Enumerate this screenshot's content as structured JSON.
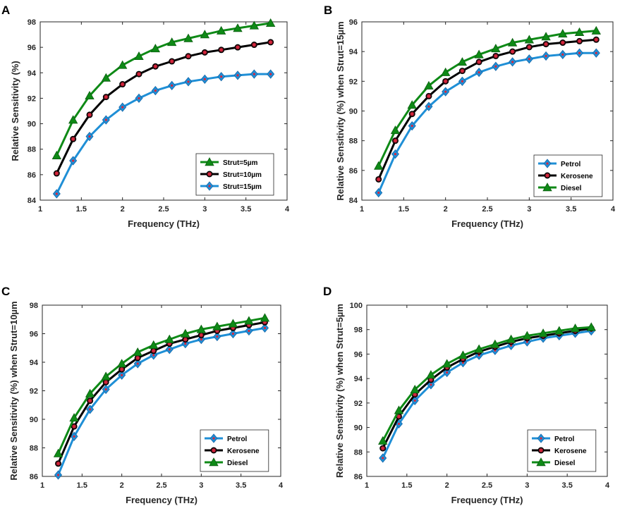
{
  "figure": {
    "panels": [
      "A",
      "B",
      "C",
      "D"
    ]
  },
  "chart_data": [
    {
      "panel": "A",
      "type": "line",
      "title": "",
      "xlabel": "Frequency (THz)",
      "ylabel": "Relative Sensitivity (%)",
      "xlim": [
        1,
        4
      ],
      "ylim": [
        84,
        98
      ],
      "xticks": [
        "1",
        "1.5",
        "2",
        "2.5",
        "3",
        "3.5",
        "4"
      ],
      "yticks": [
        "84",
        "86",
        "88",
        "90",
        "92",
        "94",
        "96",
        "98"
      ],
      "legend_position": "bottom-right",
      "x": [
        1.2,
        1.4,
        1.6,
        1.8,
        2.0,
        2.2,
        2.4,
        2.6,
        2.8,
        3.0,
        3.2,
        3.4,
        3.6,
        3.8
      ],
      "series": [
        {
          "name": "Strut=5µm",
          "color": "#0e8a16",
          "marker": "triangle",
          "values": [
            87.5,
            90.3,
            92.2,
            93.6,
            94.6,
            95.3,
            95.9,
            96.4,
            96.7,
            97.0,
            97.3,
            97.5,
            97.7,
            97.9
          ]
        },
        {
          "name": "Strut=10µm",
          "color": "#000000",
          "marker": "star",
          "values": [
            86.1,
            88.8,
            90.7,
            92.1,
            93.1,
            93.9,
            94.5,
            94.9,
            95.3,
            95.6,
            95.8,
            96.0,
            96.2,
            96.4
          ]
        },
        {
          "name": "Strut=15µm",
          "color": "#1f8fd6",
          "marker": "diamond",
          "values": [
            84.5,
            87.1,
            89.0,
            90.3,
            91.3,
            92.0,
            92.6,
            93.0,
            93.3,
            93.5,
            93.7,
            93.8,
            93.9,
            93.9
          ]
        }
      ]
    },
    {
      "panel": "B",
      "type": "line",
      "title": "",
      "xlabel": "Frequency (THz)",
      "ylabel": "Relative Sensitivity (%) when Strut=15µm",
      "xlim": [
        1,
        4
      ],
      "ylim": [
        84,
        96
      ],
      "xticks": [
        "1",
        "1.5",
        "2",
        "2.5",
        "3",
        "3.5",
        "4"
      ],
      "yticks": [
        "84",
        "86",
        "88",
        "90",
        "92",
        "94",
        "96"
      ],
      "legend_position": "bottom-right",
      "x": [
        1.2,
        1.4,
        1.6,
        1.8,
        2.0,
        2.2,
        2.4,
        2.6,
        2.8,
        3.0,
        3.2,
        3.4,
        3.6,
        3.8
      ],
      "series": [
        {
          "name": "Petrol",
          "color": "#1f8fd6",
          "marker": "diamond",
          "values": [
            84.5,
            87.1,
            89.0,
            90.3,
            91.3,
            92.0,
            92.6,
            93.0,
            93.3,
            93.5,
            93.7,
            93.8,
            93.9,
            93.9
          ]
        },
        {
          "name": "Kerosene",
          "color": "#000000",
          "marker": "star",
          "values": [
            85.4,
            88.0,
            89.8,
            91.0,
            92.0,
            92.7,
            93.3,
            93.7,
            94.0,
            94.3,
            94.5,
            94.6,
            94.7,
            94.8
          ]
        },
        {
          "name": "Diesel",
          "color": "#0e8a16",
          "marker": "triangle",
          "values": [
            86.3,
            88.7,
            90.4,
            91.7,
            92.6,
            93.3,
            93.8,
            94.2,
            94.6,
            94.8,
            95.0,
            95.2,
            95.3,
            95.4
          ]
        }
      ]
    },
    {
      "panel": "C",
      "type": "line",
      "title": "",
      "xlabel": "Frequency (THz)",
      "ylabel": "Relative Sensitivity (%) when Strut=10µm",
      "xlim": [
        1,
        4
      ],
      "ylim": [
        86,
        98
      ],
      "xticks": [
        "1",
        "1.5",
        "2",
        "2.5",
        "3",
        "3.5",
        "4"
      ],
      "yticks": [
        "86",
        "88",
        "90",
        "92",
        "94",
        "96",
        "98"
      ],
      "legend_position": "bottom-right",
      "x": [
        1.2,
        1.4,
        1.6,
        1.8,
        2.0,
        2.2,
        2.4,
        2.6,
        2.8,
        3.0,
        3.2,
        3.4,
        3.6,
        3.8
      ],
      "series": [
        {
          "name": "Petrol",
          "color": "#1f8fd6",
          "marker": "diamond",
          "values": [
            86.1,
            88.8,
            90.7,
            92.1,
            93.1,
            93.9,
            94.5,
            94.9,
            95.3,
            95.6,
            95.8,
            96.0,
            96.2,
            96.4
          ]
        },
        {
          "name": "Kerosene",
          "color": "#000000",
          "marker": "star",
          "values": [
            86.9,
            89.5,
            91.3,
            92.6,
            93.5,
            94.3,
            94.8,
            95.3,
            95.6,
            95.9,
            96.2,
            96.4,
            96.6,
            96.8
          ]
        },
        {
          "name": "Diesel",
          "color": "#0e8a16",
          "marker": "triangle",
          "values": [
            87.6,
            90.1,
            91.8,
            93.0,
            93.9,
            94.7,
            95.2,
            95.6,
            96.0,
            96.3,
            96.5,
            96.7,
            96.9,
            97.1
          ]
        }
      ]
    },
    {
      "panel": "D",
      "type": "line",
      "title": "",
      "xlabel": "Frequency (THz)",
      "ylabel": "Relative Sensitivity (%) when Strut=5µm",
      "xlim": [
        1,
        4
      ],
      "ylim": [
        86,
        100
      ],
      "xticks": [
        "1",
        "1.5",
        "2",
        "2.5",
        "3",
        "3.5",
        "4"
      ],
      "yticks": [
        "86",
        "88",
        "90",
        "92",
        "94",
        "96",
        "98",
        "100"
      ],
      "legend_position": "bottom-right",
      "x": [
        1.2,
        1.4,
        1.6,
        1.8,
        2.0,
        2.2,
        2.4,
        2.6,
        2.8,
        3.0,
        3.2,
        3.4,
        3.6,
        3.8
      ],
      "series": [
        {
          "name": "Petrol",
          "color": "#1f8fd6",
          "marker": "diamond",
          "values": [
            87.5,
            90.3,
            92.2,
            93.5,
            94.5,
            95.3,
            95.9,
            96.3,
            96.7,
            97.0,
            97.3,
            97.5,
            97.7,
            97.9
          ]
        },
        {
          "name": "Kerosene",
          "color": "#000000",
          "marker": "star",
          "values": [
            88.3,
            90.9,
            92.7,
            93.9,
            94.9,
            95.6,
            96.2,
            96.6,
            97.0,
            97.3,
            97.5,
            97.7,
            97.9,
            98.1
          ]
        },
        {
          "name": "Diesel",
          "color": "#0e8a16",
          "marker": "triangle",
          "values": [
            88.9,
            91.4,
            93.1,
            94.3,
            95.2,
            95.9,
            96.4,
            96.8,
            97.2,
            97.5,
            97.7,
            97.9,
            98.1,
            98.2
          ]
        }
      ]
    }
  ]
}
